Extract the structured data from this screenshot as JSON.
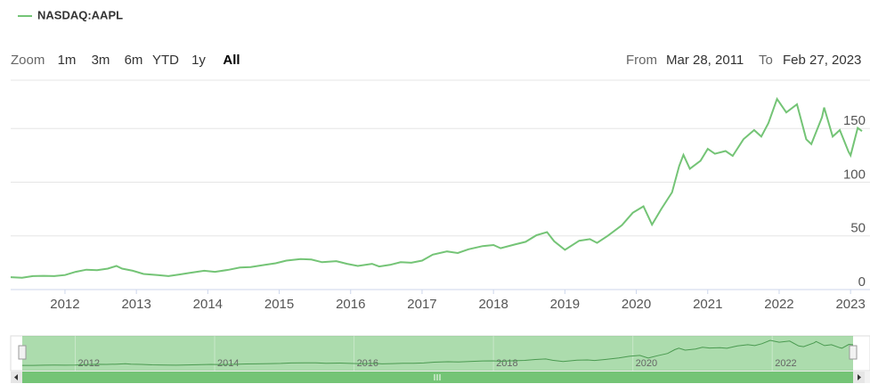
{
  "chart_data": {
    "type": "line",
    "series": [
      {
        "name": "NASDAQ:AAPL",
        "color": "#74c476",
        "values": [
          11.5,
          11.0,
          12.5,
          12.8,
          12.5,
          13.5,
          16.5,
          18.5,
          18.0,
          19.5,
          22.0,
          19.5,
          17.5,
          14.5,
          13.5,
          12.5,
          14.0,
          15.5,
          17.5,
          16.5,
          18.5,
          20.5,
          21.0,
          23.0,
          24.5,
          27.0,
          28.5,
          28.0,
          25.5,
          26.5,
          24.0,
          22.0,
          24.0,
          21.5,
          23.0,
          25.5,
          25.0,
          27.0,
          32.5,
          35.5,
          34.0,
          37.5,
          40.5,
          41.5,
          38.5,
          42.0,
          44.5,
          50.5,
          53.5,
          45.0,
          37.0,
          45.5,
          47.0,
          43.5,
          50.0,
          60.0,
          71.5,
          77.5,
          60.5,
          75.0,
          90.5,
          115.0,
          125.5,
          112.5,
          120.0,
          131.0,
          126.5,
          129.0,
          124.5,
          140.0,
          148.5,
          142.5,
          155.0,
          177.5,
          165.0,
          172.5,
          140.0,
          135.5,
          160.5,
          169.5,
          142.5,
          148.5,
          128.5,
          125.0,
          150.5,
          147.5
        ]
      }
    ],
    "x": [
      2011.24,
      2011.4,
      2011.55,
      2011.7,
      2011.85,
      2012.0,
      2012.15,
      2012.3,
      2012.45,
      2012.6,
      2012.72,
      2012.8,
      2012.95,
      2013.1,
      2013.3,
      2013.45,
      2013.6,
      2013.75,
      2013.95,
      2014.1,
      2014.3,
      2014.45,
      2014.6,
      2014.8,
      2014.95,
      2015.1,
      2015.3,
      2015.45,
      2015.6,
      2015.8,
      2015.95,
      2016.1,
      2016.3,
      2016.4,
      2016.55,
      2016.7,
      2016.85,
      2017.0,
      2017.15,
      2017.35,
      2017.5,
      2017.65,
      2017.85,
      2018.0,
      2018.1,
      2018.3,
      2018.45,
      2018.6,
      2018.75,
      2018.85,
      2019.0,
      2019.2,
      2019.35,
      2019.45,
      2019.6,
      2019.8,
      2019.95,
      2020.1,
      2020.22,
      2020.35,
      2020.5,
      2020.6,
      2020.66,
      2020.75,
      2020.9,
      2021.0,
      2021.1,
      2021.25,
      2021.35,
      2021.5,
      2021.65,
      2021.75,
      2021.85,
      2021.97,
      2022.1,
      2022.25,
      2022.38,
      2022.45,
      2022.6,
      2022.63,
      2022.75,
      2022.85,
      2022.97,
      2023.0,
      2023.1,
      2023.16
    ],
    "xlim": [
      2011.24,
      2023.16
    ],
    "xticks": [
      2012,
      2013,
      2014,
      2015,
      2016,
      2017,
      2018,
      2019,
      2020,
      2021,
      2022,
      2023
    ],
    "ylim": [
      0,
      195
    ],
    "yticks": [
      0,
      50,
      100,
      150
    ],
    "grid": true,
    "range_selector": {
      "zoom_label": "Zoom",
      "buttons": [
        "1m",
        "3m",
        "6m",
        "YTD",
        "1y",
        "All"
      ],
      "selected": 5,
      "from_label": "From",
      "from": "Mar 28, 2011",
      "to_label": "To",
      "to": "Feb 27, 2023"
    },
    "navigator": {
      "xticks": [
        2012,
        2014,
        2016,
        2018,
        2020,
        2022
      ]
    }
  }
}
